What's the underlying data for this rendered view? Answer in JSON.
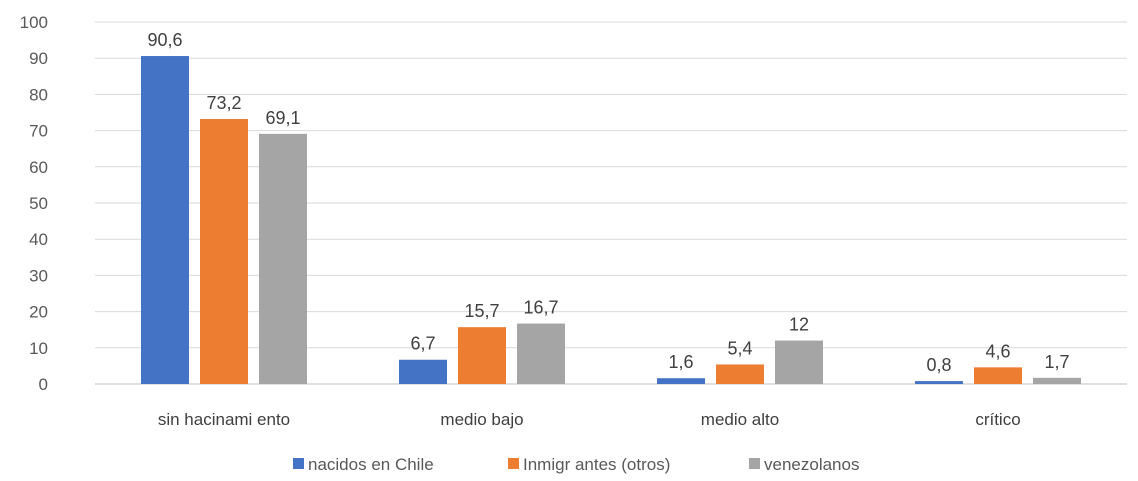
{
  "chart_data": {
    "type": "bar",
    "title": "",
    "xlabel": "",
    "ylabel": "",
    "ylim": [
      0,
      100
    ],
    "yticks": [
      0,
      10,
      20,
      30,
      40,
      50,
      60,
      70,
      80,
      90,
      100
    ],
    "grid": "horizontal",
    "legend_position": "bottom",
    "categories": [
      "sin hacinami ento",
      "medio bajo",
      "medio alto",
      "crítico"
    ],
    "series": [
      {
        "name": "nacidos en Chile",
        "color": "#4472C4",
        "values": [
          90.6,
          6.7,
          1.6,
          0.8
        ],
        "labels": [
          "90,6",
          "6,7",
          "1,6",
          "0,8"
        ]
      },
      {
        "name": "Inmigr antes (otros)",
        "color": "#ED7D31",
        "values": [
          73.2,
          15.7,
          5.4,
          4.6
        ],
        "labels": [
          "73,2",
          "15,7",
          "5,4",
          "4,6"
        ]
      },
      {
        "name": "venezolanos",
        "color": "#A5A5A5",
        "values": [
          69.1,
          16.7,
          12,
          1.7
        ],
        "labels": [
          "69,1",
          "16,7",
          "12",
          "1,7"
        ]
      }
    ]
  }
}
